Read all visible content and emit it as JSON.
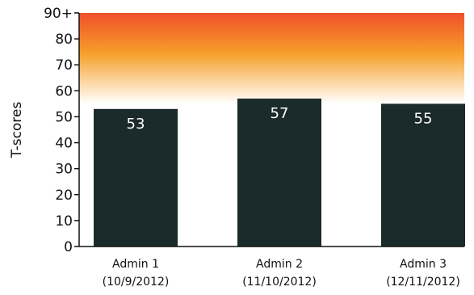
{
  "chart_data": {
    "type": "bar",
    "categories": [
      [
        "Admin 1",
        "(10/9/2012)"
      ],
      [
        "Admin 2",
        "(11/10/2012)"
      ],
      [
        "Admin 3",
        "(12/11/2012)"
      ]
    ],
    "values": [
      53,
      57,
      55
    ],
    "ylabel": "T-scores",
    "ylim": [
      0,
      90
    ],
    "yticks": [
      "0",
      "10",
      "20",
      "30",
      "40",
      "50",
      "60",
      "70",
      "80",
      "90+"
    ],
    "data_labels": [
      "53",
      "57",
      "55"
    ],
    "colors": {
      "bar": "#1b2a2a",
      "band_top": "#f0502a",
      "band_mid": "#f6a02a",
      "band_bottom": "#ffffff",
      "axis": "#111111"
    },
    "band": {
      "from": 55,
      "to": 90
    }
  }
}
